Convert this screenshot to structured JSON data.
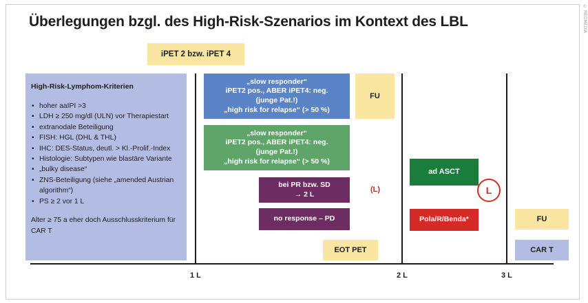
{
  "title": "Überlegungen bzgl. des High-Risk-Szenarios im Kontext des LBL",
  "side_note": "© MEDMEDIA",
  "ipet_label": "iPET 2 bzw. iPET 4",
  "criteria": {
    "heading": "High-Risk-Lymphom-Kriterien",
    "items": [
      "hoher aaIPI >3",
      "LDH ≥ 250 mg/dl (ULN) vor Therapiestart",
      "extranodale Beteiligung",
      "FISH: HGL (DHL & THL)",
      "IHC: DES-Status, deutl. > Kl.-Prolif.-Index",
      "Histologie: Subtypen wie blastäre Variante",
      "„bulky disease“",
      "ZNS-Beteiligung (siehe „amended Austrian",
      "algorithm“)",
      "PS ≥ 2 vor 1 L"
    ],
    "footer": [
      "Alter ≥ 75 a eher doch Ausschlusskriterium für",
      "CAR T"
    ]
  },
  "slow_blue": [
    "„slow responder“",
    "iPET2 pos., ABER iPET4: neg.",
    "(junge Pat.!)",
    "„high risk for relapse“ (> 50 %)"
  ],
  "slow_green": [
    "„slow responder“",
    "iPET2 pos., ABER iPET4: neg.",
    "(junge Pat.!)",
    "„high risk for relapse“ (> 50 %)"
  ],
  "fu_top": "FU",
  "pr_sd": [
    "bei PR bzw. SD",
    "→ 2 L"
  ],
  "l_paren": "(L)",
  "no_response": "no response – PD",
  "eot_pet": "EOT PET",
  "ad_asct": "ad ASCT",
  "pola": "Pola/R/Benda*",
  "circle_l": "L",
  "fu_right": "FU",
  "car_t": "CAR T",
  "axis_ticks": [
    "1 L",
    "2 L",
    "3 L"
  ]
}
